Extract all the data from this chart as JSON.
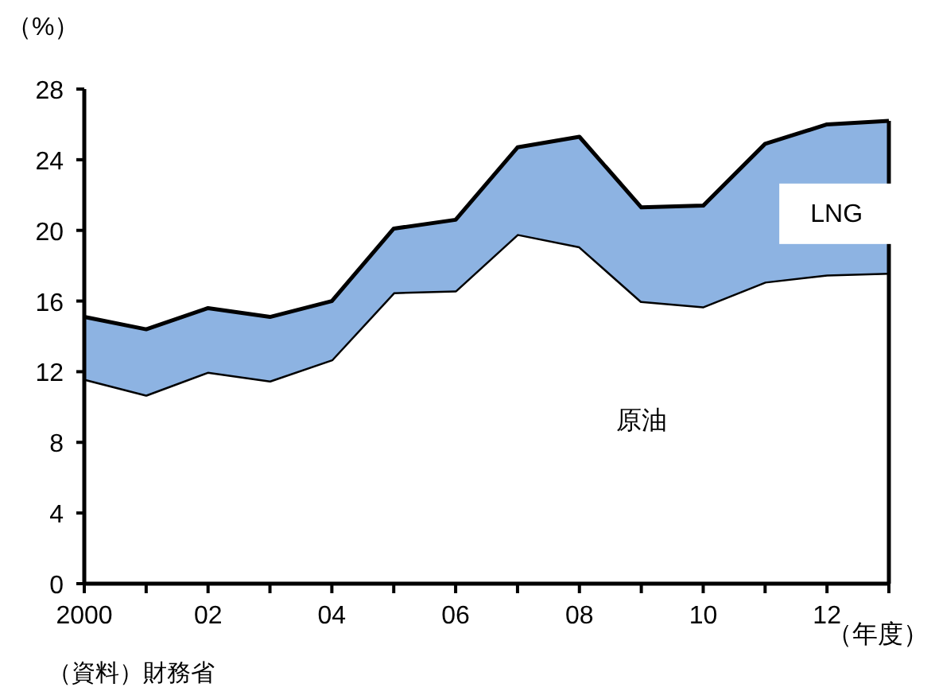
{
  "chart_data": {
    "type": "area",
    "stacked": true,
    "x": [
      2000,
      2001,
      2002,
      2003,
      2004,
      2005,
      2006,
      2007,
      2008,
      2009,
      2010,
      2011,
      2012,
      2013
    ],
    "series": [
      {
        "name": "原油",
        "color": "#ffffff",
        "values": [
          11.6,
          10.7,
          12.0,
          11.5,
          12.7,
          16.5,
          16.6,
          19.8,
          19.1,
          16.0,
          15.7,
          17.1,
          17.5,
          17.6
        ]
      },
      {
        "name": "LNG",
        "color": "#8db3e2",
        "values": [
          3.5,
          3.7,
          3.6,
          3.6,
          3.3,
          3.6,
          4.0,
          4.9,
          6.2,
          5.3,
          5.7,
          7.8,
          8.5,
          8.6
        ]
      }
    ],
    "xlabel": "（年度）",
    "ylabel": "（%）",
    "xlim": [
      2000,
      2013
    ],
    "ylim": [
      0,
      28
    ],
    "xticks": [
      {
        "value": 2000,
        "label": "2000"
      },
      {
        "value": 2001,
        "label": null
      },
      {
        "value": 2002,
        "label": "02"
      },
      {
        "value": 2003,
        "label": null
      },
      {
        "value": 2004,
        "label": "04"
      },
      {
        "value": 2005,
        "label": null
      },
      {
        "value": 2006,
        "label": "06"
      },
      {
        "value": 2007,
        "label": null
      },
      {
        "value": 2008,
        "label": "08"
      },
      {
        "value": 2009,
        "label": null
      },
      {
        "value": 2010,
        "label": "10"
      },
      {
        "value": 2011,
        "label": null
      },
      {
        "value": 2012,
        "label": "12"
      },
      {
        "value": 2013,
        "label": null
      }
    ],
    "yticks": [
      0,
      4,
      8,
      12,
      16,
      20,
      24,
      28
    ],
    "annotations": [
      "（資料）財務省"
    ],
    "grid": false,
    "legend": false
  }
}
